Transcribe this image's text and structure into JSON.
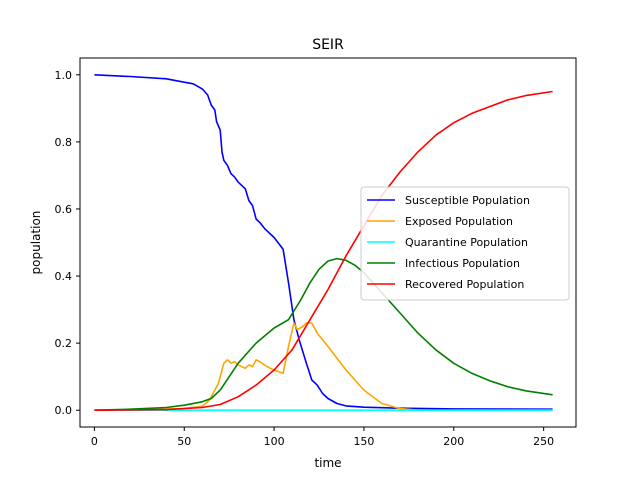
{
  "chart_data": {
    "type": "line",
    "title": "SEIR",
    "xlabel": "time",
    "ylabel": "population",
    "xlim": [
      -8,
      268
    ],
    "ylim": [
      -0.05,
      1.05
    ],
    "xticks": [
      0,
      50,
      100,
      150,
      200,
      250
    ],
    "xtick_labels": [
      "0",
      "50",
      "100",
      "150",
      "200",
      "250"
    ],
    "yticks": [
      0.0,
      0.2,
      0.4,
      0.6,
      0.8,
      1.0
    ],
    "ytick_labels": [
      "0.0",
      "0.2",
      "0.4",
      "0.6",
      "0.8",
      "1.0"
    ],
    "grid": false,
    "legend_position": "center-right",
    "series": [
      {
        "name": "Susceptible Population",
        "color": "#0000ff",
        "points": [
          [
            0,
            1.0
          ],
          [
            20,
            0.995
          ],
          [
            40,
            0.988
          ],
          [
            50,
            0.978
          ],
          [
            55,
            0.973
          ],
          [
            60,
            0.958
          ],
          [
            63,
            0.94
          ],
          [
            65,
            0.91
          ],
          [
            67,
            0.895
          ],
          [
            68,
            0.86
          ],
          [
            70,
            0.835
          ],
          [
            71,
            0.77
          ],
          [
            72,
            0.745
          ],
          [
            74,
            0.73
          ],
          [
            76,
            0.705
          ],
          [
            78,
            0.695
          ],
          [
            80,
            0.68
          ],
          [
            84,
            0.66
          ],
          [
            86,
            0.625
          ],
          [
            88,
            0.61
          ],
          [
            90,
            0.57
          ],
          [
            92,
            0.56
          ],
          [
            95,
            0.54
          ],
          [
            100,
            0.515
          ],
          [
            105,
            0.48
          ],
          [
            108,
            0.38
          ],
          [
            111,
            0.27
          ],
          [
            114,
            0.21
          ],
          [
            118,
            0.14
          ],
          [
            121,
            0.09
          ],
          [
            124,
            0.075
          ],
          [
            127,
            0.05
          ],
          [
            130,
            0.035
          ],
          [
            135,
            0.02
          ],
          [
            140,
            0.013
          ],
          [
            150,
            0.009
          ],
          [
            170,
            0.006
          ],
          [
            200,
            0.004
          ],
          [
            255,
            0.003
          ]
        ]
      },
      {
        "name": "Exposed Population",
        "color": "#ffa500",
        "points": [
          [
            0,
            0.0
          ],
          [
            30,
            0.002
          ],
          [
            50,
            0.005
          ],
          [
            60,
            0.012
          ],
          [
            64,
            0.03
          ],
          [
            67,
            0.06
          ],
          [
            69,
            0.08
          ],
          [
            70,
            0.1
          ],
          [
            72,
            0.14
          ],
          [
            74,
            0.15
          ],
          [
            76,
            0.14
          ],
          [
            78,
            0.145
          ],
          [
            80,
            0.135
          ],
          [
            84,
            0.125
          ],
          [
            86,
            0.135
          ],
          [
            88,
            0.13
          ],
          [
            90,
            0.15
          ],
          [
            92,
            0.145
          ],
          [
            96,
            0.13
          ],
          [
            100,
            0.12
          ],
          [
            105,
            0.11
          ],
          [
            108,
            0.19
          ],
          [
            111,
            0.26
          ],
          [
            113,
            0.24
          ],
          [
            116,
            0.25
          ],
          [
            118,
            0.26
          ],
          [
            121,
            0.26
          ],
          [
            124,
            0.23
          ],
          [
            130,
            0.19
          ],
          [
            140,
            0.12
          ],
          [
            150,
            0.06
          ],
          [
            160,
            0.02
          ],
          [
            170,
            0.005
          ],
          [
            180,
            0.0
          ],
          [
            255,
            0.0
          ]
        ]
      },
      {
        "name": "Quarantine Population",
        "color": "#00ffff",
        "points": [
          [
            0,
            0.0
          ],
          [
            255,
            0.0
          ]
        ]
      },
      {
        "name": "Infectious Population",
        "color": "#008000",
        "points": [
          [
            0,
            0.0
          ],
          [
            20,
            0.003
          ],
          [
            40,
            0.008
          ],
          [
            50,
            0.015
          ],
          [
            60,
            0.025
          ],
          [
            65,
            0.035
          ],
          [
            70,
            0.06
          ],
          [
            75,
            0.1
          ],
          [
            80,
            0.14
          ],
          [
            90,
            0.2
          ],
          [
            100,
            0.245
          ],
          [
            108,
            0.27
          ],
          [
            115,
            0.33
          ],
          [
            120,
            0.38
          ],
          [
            125,
            0.42
          ],
          [
            130,
            0.445
          ],
          [
            135,
            0.452
          ],
          [
            140,
            0.447
          ],
          [
            145,
            0.432
          ],
          [
            150,
            0.41
          ],
          [
            160,
            0.35
          ],
          [
            170,
            0.29
          ],
          [
            180,
            0.23
          ],
          [
            190,
            0.18
          ],
          [
            200,
            0.14
          ],
          [
            210,
            0.11
          ],
          [
            220,
            0.088
          ],
          [
            230,
            0.07
          ],
          [
            240,
            0.058
          ],
          [
            255,
            0.046
          ]
        ]
      },
      {
        "name": "Recovered Population",
        "color": "#ff0000",
        "points": [
          [
            0,
            0.0
          ],
          [
            40,
            0.002
          ],
          [
            60,
            0.008
          ],
          [
            70,
            0.017
          ],
          [
            80,
            0.04
          ],
          [
            90,
            0.075
          ],
          [
            100,
            0.12
          ],
          [
            110,
            0.18
          ],
          [
            120,
            0.27
          ],
          [
            130,
            0.36
          ],
          [
            140,
            0.46
          ],
          [
            150,
            0.55
          ],
          [
            160,
            0.64
          ],
          [
            170,
            0.71
          ],
          [
            180,
            0.77
          ],
          [
            190,
            0.82
          ],
          [
            200,
            0.857
          ],
          [
            210,
            0.885
          ],
          [
            220,
            0.905
          ],
          [
            230,
            0.925
          ],
          [
            240,
            0.938
          ],
          [
            255,
            0.95
          ]
        ]
      }
    ]
  }
}
